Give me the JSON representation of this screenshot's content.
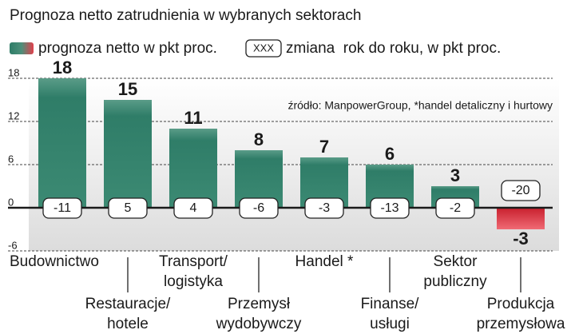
{
  "chart_data": {
    "type": "bar",
    "title": "Prognoza netto zatrudnienia w wybranych sektorach",
    "legend": {
      "bars": "prognoza netto w pkt proc.",
      "box_sample": "XXX",
      "box": "zmiana  rok do roku, w pkt proc."
    },
    "source": "źródło: ManpowerGroup, *handel detaliczny i hurtowy",
    "categories": [
      [
        "Budownictwo"
      ],
      [
        "Restauracje/",
        "hotele"
      ],
      [
        "Transport/",
        "logistyka"
      ],
      [
        "Przemysł",
        "wydobywczy"
      ],
      [
        "Handel *"
      ],
      [
        "Finanse/",
        "usługi"
      ],
      [
        "Sektor",
        "publiczny"
      ],
      [
        "Produkcja",
        "przemysłowa"
      ]
    ],
    "values": [
      18,
      15,
      11,
      8,
      7,
      6,
      3,
      -3
    ],
    "changes": [
      -11,
      5,
      4,
      -6,
      -3,
      -13,
      -2,
      -20
    ],
    "color": "#2f7d68",
    "negative_color": "#e0404c",
    "ylim": [
      -6,
      18
    ],
    "yticks": [
      -6,
      0,
      6,
      12,
      18
    ],
    "grid": true
  }
}
